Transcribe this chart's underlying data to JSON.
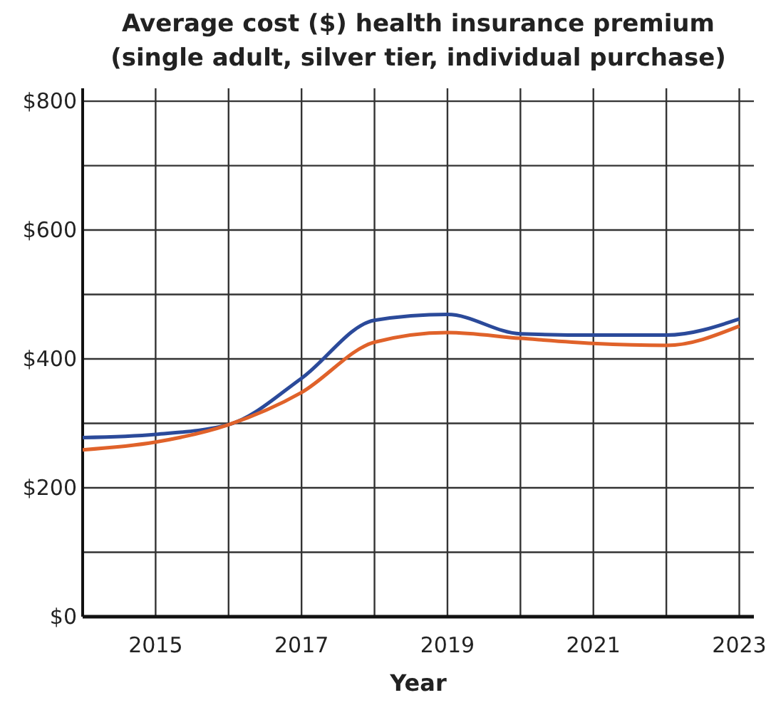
{
  "chart_data": {
    "type": "line",
    "title": "Average cost ($) health insurance premium",
    "subtitle": "(single adult, silver tier, individual purchase)",
    "xlabel": "Year",
    "x": [
      2014,
      2015,
      2016,
      2017,
      2018,
      2019,
      2020,
      2021,
      2022,
      2023
    ],
    "series": [
      {
        "color": "#2b4a9a",
        "values": [
          278,
          283,
          298,
          370,
          460,
          469,
          439,
          437,
          437,
          462
        ]
      },
      {
        "color": "#e0622a",
        "values": [
          259,
          271,
          298,
          348,
          426,
          441,
          432,
          424,
          421,
          451
        ]
      }
    ],
    "xlim": [
      2014,
      2023.2
    ],
    "xticks": [
      {
        "value": 2015,
        "label": "2015"
      },
      {
        "value": 2016,
        "label": null
      },
      {
        "value": 2017,
        "label": "2017"
      },
      {
        "value": 2018,
        "label": null
      },
      {
        "value": 2019,
        "label": "2019"
      },
      {
        "value": 2020,
        "label": null
      },
      {
        "value": 2021,
        "label": "2021"
      },
      {
        "value": 2022,
        "label": null
      },
      {
        "value": 2023,
        "label": "2023"
      }
    ],
    "ylim": [
      0,
      820
    ],
    "yticks": [
      {
        "value": 0,
        "label": "$0"
      },
      {
        "value": 100,
        "label": null
      },
      {
        "value": 200,
        "label": "$200"
      },
      {
        "value": 300,
        "label": null
      },
      {
        "value": 400,
        "label": "$400"
      },
      {
        "value": 500,
        "label": null
      },
      {
        "value": 600,
        "label": "$600"
      },
      {
        "value": 700,
        "label": null
      },
      {
        "value": 800,
        "label": "$800"
      }
    ],
    "grid": true,
    "marker": "none",
    "line_style": "solid"
  }
}
